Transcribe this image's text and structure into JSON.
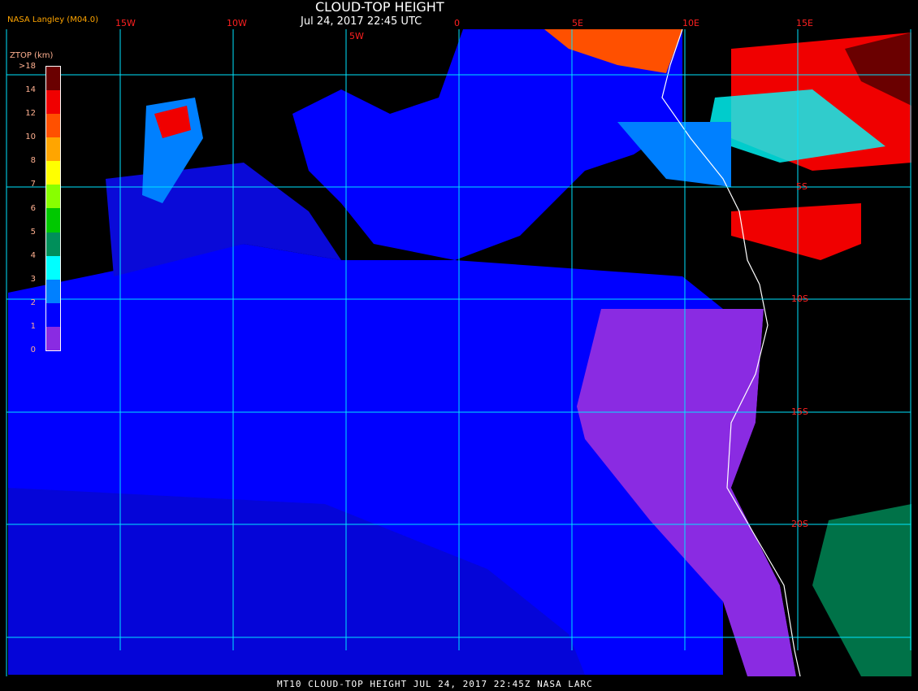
{
  "header": {
    "title": "CLOUD-TOP HEIGHT",
    "datetime": "Jul 24, 2017 22:45 UTC",
    "source": "NASA Langley (M04.0)"
  },
  "grid": {
    "longitude_labels": [
      "15W",
      "10W",
      "5W",
      "0",
      "5E",
      "10E",
      "15E"
    ],
    "latitude_labels": [
      "5S",
      "10S",
      "15S",
      "20S"
    ],
    "grid_color": "#00e5ff",
    "label_color": "#ff2020",
    "coastline_color": "#ffffff"
  },
  "legend": {
    "title": "ZTOP (km)",
    "tick_labels": [
      ">18",
      "14",
      "12",
      "10",
      "8",
      "7",
      "6",
      "5",
      "4",
      "3",
      "2",
      "1",
      "0"
    ],
    "colors": [
      "#6a0000",
      "#f00000",
      "#ff5000",
      "#ffa500",
      "#ffff00",
      "#88ff00",
      "#00c800",
      "#008f5a",
      "#00ffff",
      "#0080ff",
      "#0000ff",
      "#8a2be2"
    ]
  },
  "footer": "MT10  CLOUD-TOP HEIGHT   JUL 24, 2017 22:45Z   NASA LARC"
}
